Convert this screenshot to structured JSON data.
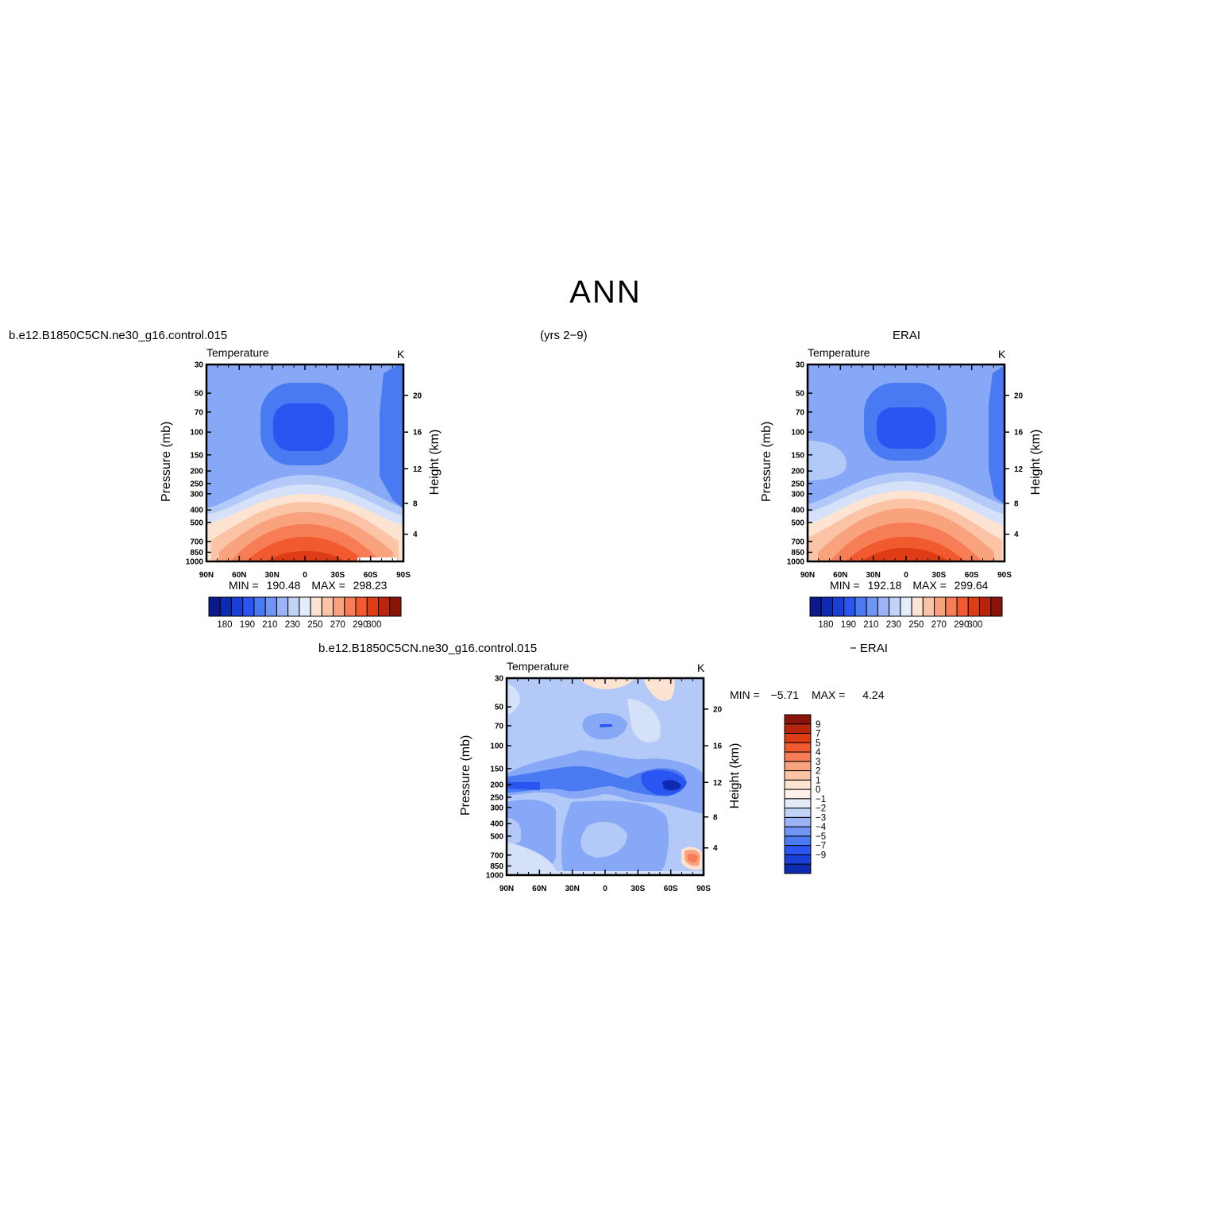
{
  "figure": {
    "title": "ANN",
    "subtitle_center": "(yrs 2−9)",
    "bottom_right_label": "− ERAI"
  },
  "panels": [
    {
      "id": "model",
      "case_label": "b.e12.B1850C5CN.ne30_g16.control.015",
      "variable": "Temperature",
      "units": "K",
      "min_label": "MIN =",
      "min_value": "190.48",
      "max_label": "MAX =",
      "max_value": "298.23"
    },
    {
      "id": "obs",
      "case_label": "ERAI",
      "variable": "Temperature",
      "units": "K",
      "min_label": "MIN =",
      "min_value": "192.18",
      "max_label": "MAX =",
      "max_value": "299.64"
    },
    {
      "id": "diff",
      "case_label": "b.e12.B1850C5CN.ne30_g16.control.015",
      "variable": "Temperature",
      "units": "K",
      "min_label": "MIN =",
      "min_value": "−5.71",
      "max_label": "MAX =",
      "max_value": "4.24"
    }
  ],
  "colorbars": {
    "absolute": {
      "colors": [
        "#0a1a8c",
        "#0d2bb0",
        "#1a3fd6",
        "#2a55f0",
        "#4a7af2",
        "#7095f5",
        "#9ab4f7",
        "#c2d3f8",
        "#e4ecfa",
        "#fde3d2",
        "#fbc4a6",
        "#f9a27e",
        "#f67d55",
        "#f05a2e",
        "#dd3c14",
        "#b8250d",
        "#8a1408"
      ],
      "labels": [
        "180",
        "190",
        "210",
        "230",
        "250",
        "270",
        "290",
        "300"
      ]
    },
    "difference": {
      "colors": [
        "#8a1408",
        "#b8250d",
        "#dd3c14",
        "#f05a2e",
        "#f67d55",
        "#f9a27e",
        "#fbc4a6",
        "#fde3d2",
        "#fdf0ea",
        "#e4ecfa",
        "#c2d3f8",
        "#9ab4f7",
        "#7095f5",
        "#4a7af2",
        "#2a55f0",
        "#1a3fd6",
        "#0d2bb0"
      ],
      "labels": [
        "9",
        "7",
        "5",
        "4",
        "3",
        "2",
        "1",
        "0",
        "−1",
        "−2",
        "−3",
        "−4",
        "−5",
        "−7",
        "−9"
      ]
    }
  },
  "chart_data": [
    {
      "type": "heatmap",
      "title": "Temperature",
      "units": "K",
      "xlabel": "",
      "ylabel": "Pressure (mb)",
      "ylabel_right": "Height (km)",
      "x_ticks": [
        "90N",
        "60N",
        "30N",
        "0",
        "30S",
        "60S",
        "90S"
      ],
      "y_ticks": [
        "30",
        "50",
        "70",
        "100",
        "150",
        "200",
        "250",
        "300",
        "400",
        "500",
        "700",
        "850",
        "1000"
      ],
      "y_right_ticks": [
        "20",
        "16",
        "12",
        "8",
        "4"
      ],
      "ylim": [
        1000,
        30
      ],
      "log_y": true,
      "min": 190.48,
      "max": 298.23
    },
    {
      "type": "heatmap",
      "title": "Temperature",
      "units": "K",
      "xlabel": "",
      "ylabel": "Pressure (mb)",
      "ylabel_right": "Height (km)",
      "x_ticks": [
        "90N",
        "60N",
        "30N",
        "0",
        "30S",
        "60S",
        "90S"
      ],
      "y_ticks": [
        "30",
        "50",
        "70",
        "100",
        "150",
        "200",
        "250",
        "300",
        "400",
        "500",
        "700",
        "850",
        "1000"
      ],
      "y_right_ticks": [
        "20",
        "16",
        "12",
        "8",
        "4"
      ],
      "ylim": [
        1000,
        30
      ],
      "log_y": true,
      "min": 192.18,
      "max": 299.64
    },
    {
      "type": "heatmap",
      "title": "Temperature",
      "units": "K",
      "xlabel": "",
      "ylabel": "Pressure (mb)",
      "ylabel_right": "Height (km)",
      "x_ticks": [
        "90N",
        "60N",
        "30N",
        "0",
        "30S",
        "60S",
        "90S"
      ],
      "y_ticks": [
        "30",
        "50",
        "70",
        "100",
        "150",
        "200",
        "250",
        "300",
        "400",
        "500",
        "700",
        "850",
        "1000"
      ],
      "y_right_ticks": [
        "20",
        "16",
        "12",
        "8",
        "4"
      ],
      "ylim": [
        1000,
        30
      ],
      "log_y": true,
      "min": -5.71,
      "max": 4.24
    }
  ]
}
